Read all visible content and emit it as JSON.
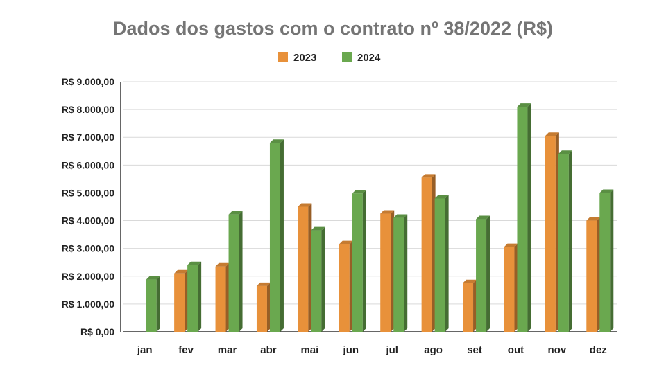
{
  "chart_data": {
    "type": "bar",
    "title": "Dados dos gastos com o contrato nº 38/2022 (R$)",
    "categories": [
      "jan",
      "fev",
      "mar",
      "abr",
      "mai",
      "jun",
      "jul",
      "ago",
      "set",
      "out",
      "nov",
      "dez"
    ],
    "series": [
      {
        "name": "2023",
        "color": "#e8913a",
        "values": [
          null,
          2100,
          2350,
          1650,
          4500,
          3150,
          4250,
          5550,
          1750,
          3050,
          7050,
          4000
        ]
      },
      {
        "name": "2024",
        "color": "#6aa84f",
        "values": [
          1880,
          2400,
          4220,
          6800,
          3650,
          4980,
          4100,
          4800,
          4050,
          8100,
          6400,
          5000
        ]
      }
    ],
    "y_ticks": [
      "R$ 0,00",
      "R$ 1.000,00",
      "R$ 2.000,00",
      "R$ 3.000,00",
      "R$ 4.000,00",
      "R$ 5.000,00",
      "R$ 6.000,00",
      "R$ 7.000,00",
      "R$ 8.000,00",
      "R$ 9.000,00"
    ],
    "ylim": [
      0,
      9000
    ],
    "grid": true,
    "legend_position": "top",
    "style": "3d-bars"
  }
}
